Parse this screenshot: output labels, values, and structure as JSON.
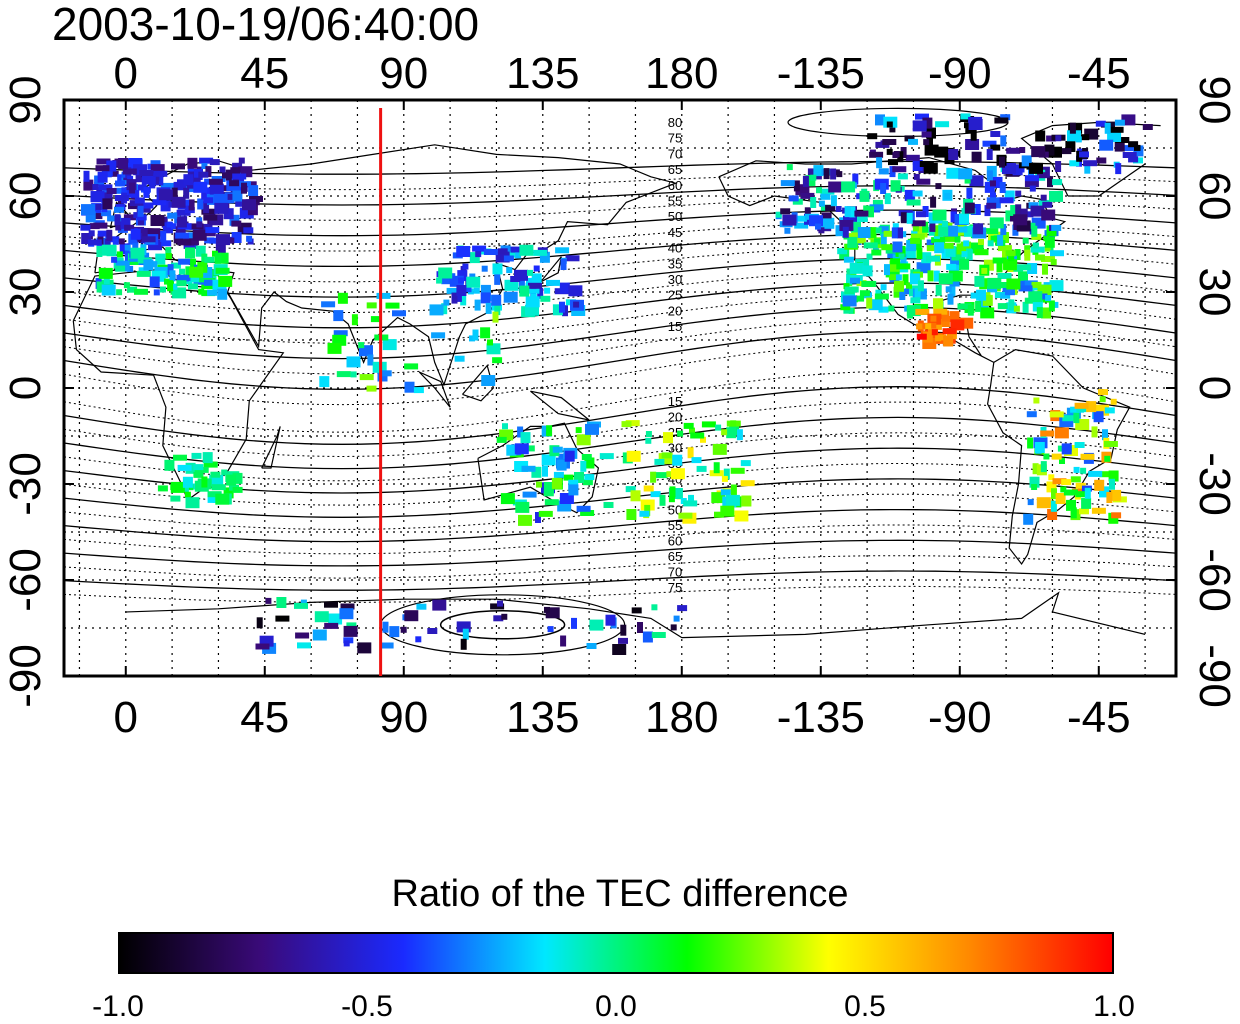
{
  "title": "2003-10-19/06:40:00",
  "map": {
    "top_axis_labels": [
      "0",
      "45",
      "90",
      "135",
      "180",
      "-135",
      "-90",
      "-45"
    ],
    "bottom_axis_labels": [
      "0",
      "45",
      "90",
      "135",
      "180",
      "-135",
      "-90",
      "-45"
    ],
    "left_axis_labels": [
      "90",
      "60",
      "30",
      "0",
      "-30",
      "-60",
      "-90"
    ],
    "right_axis_labels": [
      "90",
      "60",
      "30",
      "0",
      "-30",
      "-60",
      "-90"
    ],
    "marker_longitude_deg": 82.5,
    "marker_color": "#ee1111",
    "north_contour_labels": [
      "80",
      "75",
      "70",
      "65",
      "60",
      "55",
      "50",
      "45",
      "40",
      "35",
      "30",
      "25",
      "20",
      "15"
    ],
    "south_contour_labels": [
      "15",
      "20",
      "25",
      "30",
      "35",
      "40",
      "45",
      "50",
      "55",
      "60",
      "65",
      "70",
      "75"
    ]
  },
  "colorbar": {
    "title": "Ratio of the TEC difference",
    "tick_labels": [
      "-1.0",
      "-0.5",
      "0.0",
      "0.5",
      "1.0"
    ],
    "range": [
      -1.0,
      1.0
    ],
    "stops": [
      "#000000",
      "#3a0a7a",
      "#1a2aff",
      "#00e8ff",
      "#00ff00",
      "#ffff00",
      "#ff8800",
      "#ff0000"
    ]
  }
}
